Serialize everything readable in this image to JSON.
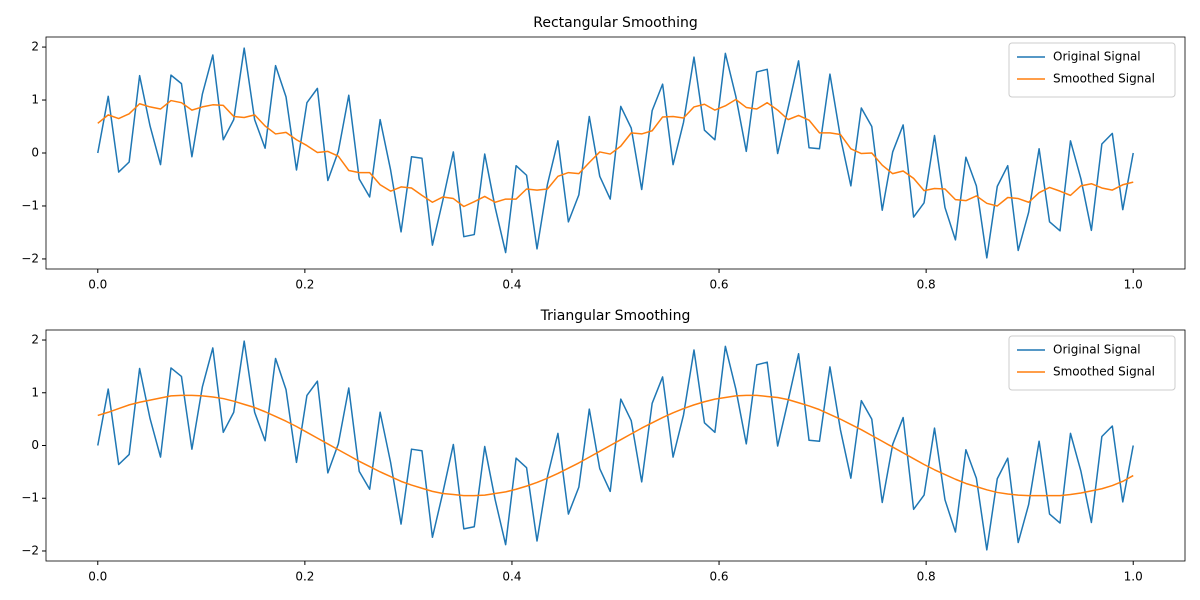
{
  "chart_data": [
    {
      "type": "line",
      "title": "Rectangular Smoothing",
      "x": [
        0,
        0.0101,
        0.0202,
        0.0303,
        0.0404,
        0.0505,
        0.0606,
        0.0707,
        0.0808,
        0.0909,
        0.101,
        0.1111,
        0.1212,
        0.1313,
        0.1414,
        0.1515,
        0.1616,
        0.1717,
        0.1818,
        0.1919,
        0.202,
        0.2121,
        0.2222,
        0.2323,
        0.2424,
        0.2525,
        0.2626,
        0.2727,
        0.2828,
        0.2929,
        0.303,
        0.3131,
        0.3232,
        0.3333,
        0.3434,
        0.3535,
        0.3636,
        0.3737,
        0.3838,
        0.3939,
        0.404,
        0.4141,
        0.4242,
        0.4343,
        0.4444,
        0.4545,
        0.4646,
        0.4747,
        0.4848,
        0.4949,
        0.5051,
        0.5152,
        0.5253,
        0.5354,
        0.5455,
        0.5556,
        0.5657,
        0.5758,
        0.5859,
        0.596,
        0.6061,
        0.6162,
        0.6263,
        0.6364,
        0.6465,
        0.6566,
        0.6667,
        0.6768,
        0.6869,
        0.697,
        0.7071,
        0.7172,
        0.7273,
        0.7374,
        0.7475,
        0.7576,
        0.7677,
        0.7778,
        0.7879,
        0.798,
        0.8081,
        0.8182,
        0.8283,
        0.8384,
        0.8485,
        0.8586,
        0.8687,
        0.8788,
        0.8889,
        0.899,
        0.9091,
        0.9192,
        0.9293,
        0.9394,
        0.9495,
        0.9596,
        0.9697,
        0.9798,
        0.9899,
        1
      ],
      "series": [
        {
          "name": "Original Signal",
          "color": "#1f77b4",
          "values": [
            0,
            1.07,
            -0.36,
            -0.17,
            1.46,
            0.51,
            -0.22,
            1.47,
            1.31,
            -0.07,
            1.11,
            1.85,
            0.25,
            0.63,
            1.98,
            0.63,
            0.09,
            1.65,
            1.06,
            -0.32,
            0.95,
            1.22,
            -0.52,
            0.03,
            1.09,
            -0.49,
            -0.83,
            0.63,
            -0.32,
            -1.49,
            -0.07,
            -0.1,
            -1.74,
            -0.89,
            0.02,
            -1.58,
            -1.54,
            -0.02,
            -1.03,
            -1.88,
            -0.24,
            -0.42,
            -1.81,
            -0.59,
            0.23,
            -1.3,
            -0.79,
            0.69,
            -0.44,
            -0.87,
            0.88,
            0.47,
            -0.69,
            0.8,
            1.3,
            -0.22,
            0.58,
            1.81,
            0.43,
            0.25,
            1.88,
            1.07,
            0.03,
            1.53,
            1.58,
            -0.01,
            0.85,
            1.74,
            0.1,
            0.08,
            1.49,
            0.3,
            -0.62,
            0.85,
            0.5,
            -1.08,
            0.02,
            0.53,
            -1.21,
            -0.94,
            0.33,
            -1.03,
            -1.64,
            -0.08,
            -0.62,
            -1.98,
            -0.63,
            -0.24,
            -1.84,
            -1.12,
            0.08,
            -1.3,
            -1.47,
            0.23,
            -0.49,
            -1.46,
            0.17,
            0.37,
            -1.07,
            0
          ]
        },
        {
          "name": "Smoothed Signal",
          "color": "#ff7f0e",
          "values": [
            0.56,
            0.72,
            0.65,
            0.74,
            0.93,
            0.87,
            0.83,
            0.99,
            0.95,
            0.81,
            0.87,
            0.91,
            0.9,
            0.69,
            0.67,
            0.72,
            0.51,
            0.36,
            0.39,
            0.25,
            0.14,
            0.01,
            0.03,
            -0.06,
            -0.33,
            -0.37,
            -0.37,
            -0.6,
            -0.72,
            -0.64,
            -0.66,
            -0.8,
            -0.93,
            -0.83,
            -0.86,
            -1.01,
            -0.92,
            -0.82,
            -0.93,
            -0.87,
            -0.87,
            -0.68,
            -0.7,
            -0.68,
            -0.44,
            -0.37,
            -0.39,
            -0.18,
            0.02,
            -0.02,
            0.13,
            0.38,
            0.36,
            0.42,
            0.68,
            0.69,
            0.66,
            0.87,
            0.92,
            0.81,
            0.89,
            1.01,
            0.86,
            0.83,
            0.95,
            0.81,
            0.63,
            0.71,
            0.62,
            0.38,
            0.38,
            0.35,
            0.08,
            -0.01,
            0,
            -0.23,
            -0.39,
            -0.34,
            -0.48,
            -0.71,
            -0.67,
            -0.68,
            -0.88,
            -0.9,
            -0.81,
            -0.95,
            -1,
            -0.84,
            -0.86,
            -0.93,
            -0.75,
            -0.65,
            -0.72,
            -0.8,
            -0.62,
            -0.58,
            -0.66,
            -0.7,
            -0.6,
            -0.55
          ]
        }
      ],
      "xlim": [
        -0.05,
        1.05
      ],
      "ylim": [
        -2.19,
        2.19
      ],
      "xticks": [
        {
          "value": 0,
          "label": "0.0"
        },
        0.2,
        0.4,
        0.6,
        0.8,
        {
          "value": 1,
          "label": "1.0"
        }
      ],
      "yticks": [
        {
          "value": -2,
          "label": "−2"
        },
        {
          "value": -1,
          "label": "−1"
        },
        0,
        1,
        2
      ],
      "legend": "upper right"
    },
    {
      "type": "line",
      "title": "Triangular Smoothing",
      "x": [
        0,
        0.0101,
        0.0202,
        0.0303,
        0.0404,
        0.0505,
        0.0606,
        0.0707,
        0.0808,
        0.0909,
        0.101,
        0.1111,
        0.1212,
        0.1313,
        0.1414,
        0.1515,
        0.1616,
        0.1717,
        0.1818,
        0.1919,
        0.202,
        0.2121,
        0.2222,
        0.2323,
        0.2424,
        0.2525,
        0.2626,
        0.2727,
        0.2828,
        0.2929,
        0.303,
        0.3131,
        0.3232,
        0.3333,
        0.3434,
        0.3535,
        0.3636,
        0.3737,
        0.3838,
        0.3939,
        0.404,
        0.4141,
        0.4242,
        0.4343,
        0.4444,
        0.4545,
        0.4646,
        0.4747,
        0.4848,
        0.4949,
        0.5051,
        0.5152,
        0.5253,
        0.5354,
        0.5455,
        0.5556,
        0.5657,
        0.5758,
        0.5859,
        0.596,
        0.6061,
        0.6162,
        0.6263,
        0.6364,
        0.6465,
        0.6566,
        0.6667,
        0.6768,
        0.6869,
        0.697,
        0.7071,
        0.7172,
        0.7273,
        0.7374,
        0.7475,
        0.7576,
        0.7677,
        0.7778,
        0.7879,
        0.798,
        0.8081,
        0.8182,
        0.8283,
        0.8384,
        0.8485,
        0.8586,
        0.8687,
        0.8788,
        0.8889,
        0.899,
        0.9091,
        0.9192,
        0.9293,
        0.9394,
        0.9495,
        0.9596,
        0.9697,
        0.9798,
        0.9899,
        1
      ],
      "series": [
        {
          "name": "Original Signal",
          "color": "#1f77b4",
          "values": [
            0,
            1.07,
            -0.36,
            -0.17,
            1.46,
            0.51,
            -0.22,
            1.47,
            1.31,
            -0.07,
            1.11,
            1.85,
            0.25,
            0.63,
            1.98,
            0.63,
            0.09,
            1.65,
            1.06,
            -0.32,
            0.95,
            1.22,
            -0.52,
            0.03,
            1.09,
            -0.49,
            -0.83,
            0.63,
            -0.32,
            -1.49,
            -0.07,
            -0.1,
            -1.74,
            -0.89,
            0.02,
            -1.58,
            -1.54,
            -0.02,
            -1.03,
            -1.88,
            -0.24,
            -0.42,
            -1.81,
            -0.59,
            0.23,
            -1.3,
            -0.79,
            0.69,
            -0.44,
            -0.87,
            0.88,
            0.47,
            -0.69,
            0.8,
            1.3,
            -0.22,
            0.58,
            1.81,
            0.43,
            0.25,
            1.88,
            1.07,
            0.03,
            1.53,
            1.58,
            -0.01,
            0.85,
            1.74,
            0.1,
            0.08,
            1.49,
            0.3,
            -0.62,
            0.85,
            0.5,
            -1.08,
            0.02,
            0.53,
            -1.21,
            -0.94,
            0.33,
            -1.03,
            -1.64,
            -0.08,
            -0.62,
            -1.98,
            -0.63,
            -0.24,
            -1.84,
            -1.12,
            0.08,
            -1.3,
            -1.47,
            0.23,
            -0.49,
            -1.46,
            0.17,
            0.37,
            -1.07,
            0
          ]
        },
        {
          "name": "Smoothed Signal",
          "color": "#ff7f0e",
          "values": [
            0.57,
            0.63,
            0.7,
            0.77,
            0.82,
            0.86,
            0.9,
            0.94,
            0.95,
            0.95,
            0.94,
            0.92,
            0.89,
            0.84,
            0.78,
            0.72,
            0.64,
            0.55,
            0.46,
            0.36,
            0.25,
            0.14,
            0.03,
            -0.08,
            -0.19,
            -0.3,
            -0.4,
            -0.5,
            -0.59,
            -0.68,
            -0.75,
            -0.81,
            -0.87,
            -0.91,
            -0.93,
            -0.95,
            -0.95,
            -0.94,
            -0.91,
            -0.88,
            -0.83,
            -0.77,
            -0.7,
            -0.62,
            -0.53,
            -0.43,
            -0.33,
            -0.22,
            -0.11,
            0,
            0.11,
            0.22,
            0.33,
            0.43,
            0.53,
            0.62,
            0.7,
            0.77,
            0.83,
            0.88,
            0.91,
            0.94,
            0.95,
            0.95,
            0.93,
            0.91,
            0.87,
            0.81,
            0.75,
            0.68,
            0.59,
            0.5,
            0.4,
            0.3,
            0.19,
            0.08,
            -0.03,
            -0.14,
            -0.25,
            -0.36,
            -0.46,
            -0.55,
            -0.64,
            -0.72,
            -0.78,
            -0.84,
            -0.89,
            -0.92,
            -0.94,
            -0.95,
            -0.95,
            -0.95,
            -0.95,
            -0.93,
            -0.9,
            -0.86,
            -0.82,
            -0.76,
            -0.68,
            -0.57
          ]
        }
      ],
      "xlim": [
        -0.05,
        1.05
      ],
      "ylim": [
        -2.19,
        2.19
      ],
      "xticks": [
        {
          "value": 0,
          "label": "0.0"
        },
        0.2,
        0.4,
        0.6,
        0.8,
        {
          "value": 1,
          "label": "1.0"
        }
      ],
      "yticks": [
        {
          "value": -2,
          "label": "−2"
        },
        {
          "value": -1,
          "label": "−1"
        },
        0,
        1,
        2
      ],
      "legend": "upper right"
    }
  ]
}
